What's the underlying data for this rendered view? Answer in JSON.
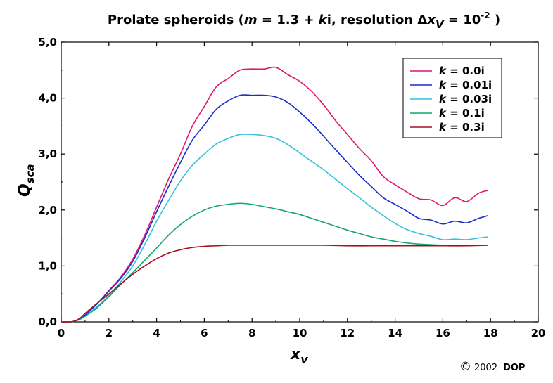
{
  "chart_data": {
    "type": "line",
    "title_parts": {
      "prefix": "Prolate spheroids (",
      "m_var": "m",
      "m_eq": " = 1.3 + ",
      "k_var": "k",
      "k_unit": "i, resolution ",
      "delta": "Δ",
      "x_var": "x",
      "x_sub": "V",
      "eq_ten": " = 10",
      "exponent": "-2",
      "suffix": " )"
    },
    "xlabel": {
      "main": "x",
      "sub": "v"
    },
    "ylabel": {
      "main": "Q",
      "sub": "sca"
    },
    "xlim": [
      0,
      20
    ],
    "ylim": [
      0,
      5
    ],
    "x_ticks": [
      "0",
      "2",
      "4",
      "6",
      "8",
      "10",
      "12",
      "14",
      "16",
      "18",
      "20"
    ],
    "y_ticks": [
      "0,0",
      "1,0",
      "2,0",
      "3,0",
      "4,0",
      "5,0"
    ],
    "grid": false,
    "legend_position": "top-right",
    "series": [
      {
        "name": "k = 0.0i",
        "legend_k": "k",
        "legend_val": " = 0.0i",
        "color": "#e0176f",
        "x": [
          0,
          0.4,
          0.6,
          0.8,
          1.0,
          1.5,
          2.0,
          2.5,
          3.0,
          3.5,
          4.0,
          4.5,
          5.0,
          5.5,
          6.0,
          6.5,
          7.0,
          7.5,
          8.0,
          8.5,
          9.0,
          9.5,
          10.0,
          10.5,
          11.0,
          11.5,
          12.0,
          12.5,
          13.0,
          13.5,
          14.0,
          14.5,
          15.0,
          15.5,
          16.0,
          16.5,
          17.0,
          17.5,
          17.9
        ],
        "values": [
          0,
          0,
          0.02,
          0.05,
          0.12,
          0.32,
          0.56,
          0.8,
          1.12,
          1.55,
          2.05,
          2.55,
          3.0,
          3.5,
          3.85,
          4.2,
          4.35,
          4.5,
          4.52,
          4.52,
          4.55,
          4.42,
          4.3,
          4.12,
          3.88,
          3.6,
          3.35,
          3.1,
          2.88,
          2.6,
          2.45,
          2.32,
          2.2,
          2.18,
          2.08,
          2.22,
          2.15,
          2.3,
          2.35
        ]
      },
      {
        "name": "k = 0.01i",
        "legend_k": "k",
        "legend_val": " = 0.01i",
        "color": "#1a2ccc",
        "x": [
          0,
          0.4,
          0.6,
          0.8,
          1.0,
          1.5,
          2.0,
          2.5,
          3.0,
          3.5,
          4.0,
          4.5,
          5.0,
          5.5,
          6.0,
          6.5,
          7.0,
          7.5,
          8.0,
          8.5,
          9.0,
          9.5,
          10.0,
          10.5,
          11.0,
          11.5,
          12.0,
          12.5,
          13.0,
          13.5,
          14.0,
          14.5,
          15.0,
          15.5,
          16.0,
          16.5,
          17.0,
          17.5,
          17.9
        ],
        "values": [
          0,
          0,
          0.02,
          0.05,
          0.12,
          0.32,
          0.55,
          0.78,
          1.08,
          1.5,
          1.97,
          2.42,
          2.85,
          3.25,
          3.52,
          3.8,
          3.95,
          4.05,
          4.05,
          4.05,
          4.02,
          3.92,
          3.75,
          3.55,
          3.32,
          3.08,
          2.85,
          2.62,
          2.42,
          2.22,
          2.1,
          1.98,
          1.85,
          1.82,
          1.75,
          1.8,
          1.77,
          1.85,
          1.9
        ]
      },
      {
        "name": "k = 0.03i",
        "legend_k": "k",
        "legend_val": " = 0.03i",
        "color": "#37c0dc",
        "x": [
          0,
          0.4,
          0.6,
          0.8,
          1.0,
          1.5,
          2.0,
          2.5,
          3.0,
          3.5,
          4.0,
          4.5,
          5.0,
          5.5,
          6.0,
          6.5,
          7.0,
          7.5,
          8.0,
          8.5,
          9.0,
          9.5,
          10.0,
          10.5,
          11.0,
          11.5,
          12.0,
          12.5,
          13.0,
          13.5,
          14.0,
          14.5,
          15.0,
          15.5,
          16.0,
          16.5,
          17.0,
          17.5,
          17.9
        ],
        "values": [
          0,
          0,
          0.02,
          0.05,
          0.1,
          0.27,
          0.47,
          0.72,
          1.0,
          1.38,
          1.8,
          2.17,
          2.52,
          2.8,
          3.0,
          3.18,
          3.28,
          3.35,
          3.35,
          3.33,
          3.28,
          3.17,
          3.02,
          2.87,
          2.72,
          2.55,
          2.38,
          2.22,
          2.05,
          1.9,
          1.76,
          1.65,
          1.58,
          1.53,
          1.47,
          1.48,
          1.47,
          1.5,
          1.52
        ]
      },
      {
        "name": "k = 0.1i",
        "legend_k": "k",
        "legend_val": " = 0.1i",
        "color": "#12a56f",
        "x": [
          0,
          0.4,
          0.6,
          0.8,
          1.0,
          1.5,
          2.0,
          2.5,
          3.0,
          3.5,
          4.0,
          4.5,
          5.0,
          5.5,
          6.0,
          6.5,
          7.0,
          7.5,
          8.0,
          8.5,
          9.0,
          9.5,
          10.0,
          10.5,
          11.0,
          11.5,
          12.0,
          12.5,
          13.0,
          13.5,
          14.0,
          14.5,
          15.0,
          15.5,
          16.0,
          16.5,
          17.0,
          17.5,
          17.9
        ],
        "values": [
          0,
          0,
          0.02,
          0.05,
          0.1,
          0.25,
          0.45,
          0.67,
          0.88,
          1.1,
          1.32,
          1.55,
          1.74,
          1.89,
          2.0,
          2.07,
          2.1,
          2.12,
          2.1,
          2.06,
          2.02,
          1.97,
          1.92,
          1.85,
          1.78,
          1.71,
          1.64,
          1.58,
          1.52,
          1.48,
          1.44,
          1.41,
          1.39,
          1.38,
          1.37,
          1.37,
          1.37,
          1.37,
          1.37
        ]
      },
      {
        "name": "k = 0.3i",
        "legend_k": "k",
        "legend_val": " = 0.3i",
        "color": "#a8101f",
        "x": [
          0,
          0.4,
          0.6,
          0.8,
          1.0,
          1.5,
          2.0,
          2.5,
          3.0,
          3.5,
          4.0,
          4.5,
          5.0,
          5.5,
          6.0,
          6.5,
          7.0,
          7.5,
          8.0,
          9.0,
          10.0,
          11.0,
          12.0,
          13.0,
          14.0,
          15.0,
          16.0,
          17.0,
          17.9
        ],
        "values": [
          0,
          0,
          0.02,
          0.07,
          0.15,
          0.33,
          0.5,
          0.68,
          0.85,
          1.0,
          1.13,
          1.23,
          1.29,
          1.33,
          1.35,
          1.36,
          1.37,
          1.37,
          1.37,
          1.37,
          1.37,
          1.37,
          1.36,
          1.36,
          1.36,
          1.36,
          1.36,
          1.36,
          1.37
        ]
      }
    ]
  },
  "copyright": {
    "symbol": "©",
    "year": "2002",
    "author": "DOP"
  }
}
